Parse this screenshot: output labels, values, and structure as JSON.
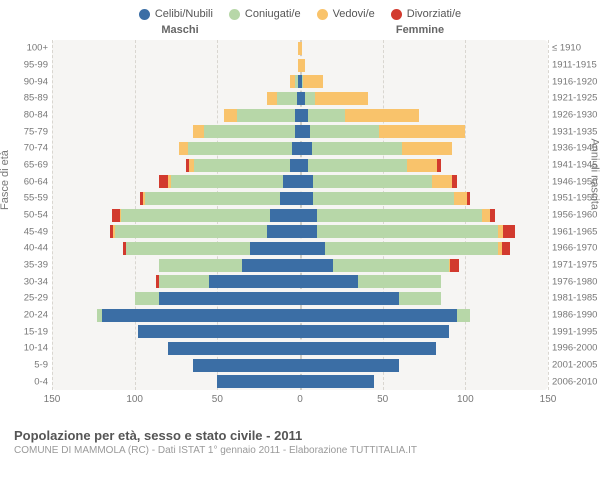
{
  "chart": {
    "type": "population-pyramid",
    "background_color": "#f6f5f3",
    "grid_color": "#d9d6d0",
    "legend": [
      {
        "label": "Celibi/Nubili",
        "color": "#3b6ea5"
      },
      {
        "label": "Coniugati/e",
        "color": "#b7d7a8"
      },
      {
        "label": "Vedovi/e",
        "color": "#f9c36b"
      },
      {
        "label": "Divorziati/e",
        "color": "#d23a2e"
      }
    ],
    "side_titles": {
      "left": "Maschi",
      "right": "Femmine"
    },
    "y_axis_left_label": "Fasce di età",
    "y_axis_right_label": "Anni di nascita",
    "x_max": 150,
    "x_ticks": [
      150,
      100,
      50,
      0,
      50,
      100,
      150
    ],
    "series_keys": [
      "single",
      "married",
      "widowed",
      "divorced"
    ],
    "series_colors": {
      "single": "#3b6ea5",
      "married": "#b7d7a8",
      "widowed": "#f9c36b",
      "divorced": "#d23a2e"
    },
    "rows": [
      {
        "age": "100+",
        "birth": "≤ 1910",
        "m": {
          "single": 0,
          "married": 0,
          "widowed": 1,
          "divorced": 0
        },
        "f": {
          "single": 0,
          "married": 0,
          "widowed": 1,
          "divorced": 0
        }
      },
      {
        "age": "95-99",
        "birth": "1911-1915",
        "m": {
          "single": 0,
          "married": 0,
          "widowed": 1,
          "divorced": 0
        },
        "f": {
          "single": 0,
          "married": 0,
          "widowed": 3,
          "divorced": 0
        }
      },
      {
        "age": "90-94",
        "birth": "1916-1920",
        "m": {
          "single": 1,
          "married": 2,
          "widowed": 3,
          "divorced": 0
        },
        "f": {
          "single": 1,
          "married": 1,
          "widowed": 12,
          "divorced": 0
        }
      },
      {
        "age": "85-89",
        "birth": "1921-1925",
        "m": {
          "single": 2,
          "married": 12,
          "widowed": 6,
          "divorced": 0
        },
        "f": {
          "single": 3,
          "married": 6,
          "widowed": 32,
          "divorced": 0
        }
      },
      {
        "age": "80-84",
        "birth": "1926-1930",
        "m": {
          "single": 3,
          "married": 35,
          "widowed": 8,
          "divorced": 0
        },
        "f": {
          "single": 5,
          "married": 22,
          "widowed": 45,
          "divorced": 0
        }
      },
      {
        "age": "75-79",
        "birth": "1931-1935",
        "m": {
          "single": 3,
          "married": 55,
          "widowed": 7,
          "divorced": 0
        },
        "f": {
          "single": 6,
          "married": 42,
          "widowed": 52,
          "divorced": 0
        }
      },
      {
        "age": "70-74",
        "birth": "1936-1940",
        "m": {
          "single": 5,
          "married": 63,
          "widowed": 5,
          "divorced": 0
        },
        "f": {
          "single": 7,
          "married": 55,
          "widowed": 30,
          "divorced": 0
        }
      },
      {
        "age": "65-69",
        "birth": "1941-1945",
        "m": {
          "single": 6,
          "married": 58,
          "widowed": 3,
          "divorced": 2
        },
        "f": {
          "single": 5,
          "married": 60,
          "widowed": 18,
          "divorced": 2
        }
      },
      {
        "age": "60-64",
        "birth": "1946-1950",
        "m": {
          "single": 10,
          "married": 68,
          "widowed": 2,
          "divorced": 5
        },
        "f": {
          "single": 8,
          "married": 72,
          "widowed": 12,
          "divorced": 3
        }
      },
      {
        "age": "55-59",
        "birth": "1951-1955",
        "m": {
          "single": 12,
          "married": 82,
          "widowed": 1,
          "divorced": 2
        },
        "f": {
          "single": 8,
          "married": 85,
          "widowed": 8,
          "divorced": 2
        }
      },
      {
        "age": "50-54",
        "birth": "1956-1960",
        "m": {
          "single": 18,
          "married": 90,
          "widowed": 1,
          "divorced": 5
        },
        "f": {
          "single": 10,
          "married": 100,
          "widowed": 5,
          "divorced": 3
        }
      },
      {
        "age": "45-49",
        "birth": "1961-1965",
        "m": {
          "single": 20,
          "married": 92,
          "widowed": 1,
          "divorced": 2
        },
        "f": {
          "single": 10,
          "married": 110,
          "widowed": 3,
          "divorced": 7
        }
      },
      {
        "age": "40-44",
        "birth": "1966-1970",
        "m": {
          "single": 30,
          "married": 75,
          "widowed": 0,
          "divorced": 2
        },
        "f": {
          "single": 15,
          "married": 105,
          "widowed": 2,
          "divorced": 5
        }
      },
      {
        "age": "35-39",
        "birth": "1971-1975",
        "m": {
          "single": 35,
          "married": 50,
          "widowed": 0,
          "divorced": 0
        },
        "f": {
          "single": 20,
          "married": 70,
          "widowed": 1,
          "divorced": 5
        }
      },
      {
        "age": "30-34",
        "birth": "1976-1980",
        "m": {
          "single": 55,
          "married": 30,
          "widowed": 0,
          "divorced": 2
        },
        "f": {
          "single": 35,
          "married": 50,
          "widowed": 0,
          "divorced": 0
        }
      },
      {
        "age": "25-29",
        "birth": "1981-1985",
        "m": {
          "single": 85,
          "married": 15,
          "widowed": 0,
          "divorced": 0
        },
        "f": {
          "single": 60,
          "married": 25,
          "widowed": 0,
          "divorced": 0
        }
      },
      {
        "age": "20-24",
        "birth": "1986-1990",
        "m": {
          "single": 120,
          "married": 3,
          "widowed": 0,
          "divorced": 0
        },
        "f": {
          "single": 95,
          "married": 8,
          "widowed": 0,
          "divorced": 0
        }
      },
      {
        "age": "15-19",
        "birth": "1991-1995",
        "m": {
          "single": 98,
          "married": 0,
          "widowed": 0,
          "divorced": 0
        },
        "f": {
          "single": 90,
          "married": 0,
          "widowed": 0,
          "divorced": 0
        }
      },
      {
        "age": "10-14",
        "birth": "1996-2000",
        "m": {
          "single": 80,
          "married": 0,
          "widowed": 0,
          "divorced": 0
        },
        "f": {
          "single": 82,
          "married": 0,
          "widowed": 0,
          "divorced": 0
        }
      },
      {
        "age": "5-9",
        "birth": "2001-2005",
        "m": {
          "single": 65,
          "married": 0,
          "widowed": 0,
          "divorced": 0
        },
        "f": {
          "single": 60,
          "married": 0,
          "widowed": 0,
          "divorced": 0
        }
      },
      {
        "age": "0-4",
        "birth": "2006-2010",
        "m": {
          "single": 50,
          "married": 0,
          "widowed": 0,
          "divorced": 0
        },
        "f": {
          "single": 45,
          "married": 0,
          "widowed": 0,
          "divorced": 0
        }
      }
    ]
  },
  "footer": {
    "title": "Popolazione per età, sesso e stato civile - 2011",
    "subtitle": "COMUNE DI MAMMOLA (RC) - Dati ISTAT 1° gennaio 2011 - Elaborazione TUTTITALIA.IT"
  }
}
